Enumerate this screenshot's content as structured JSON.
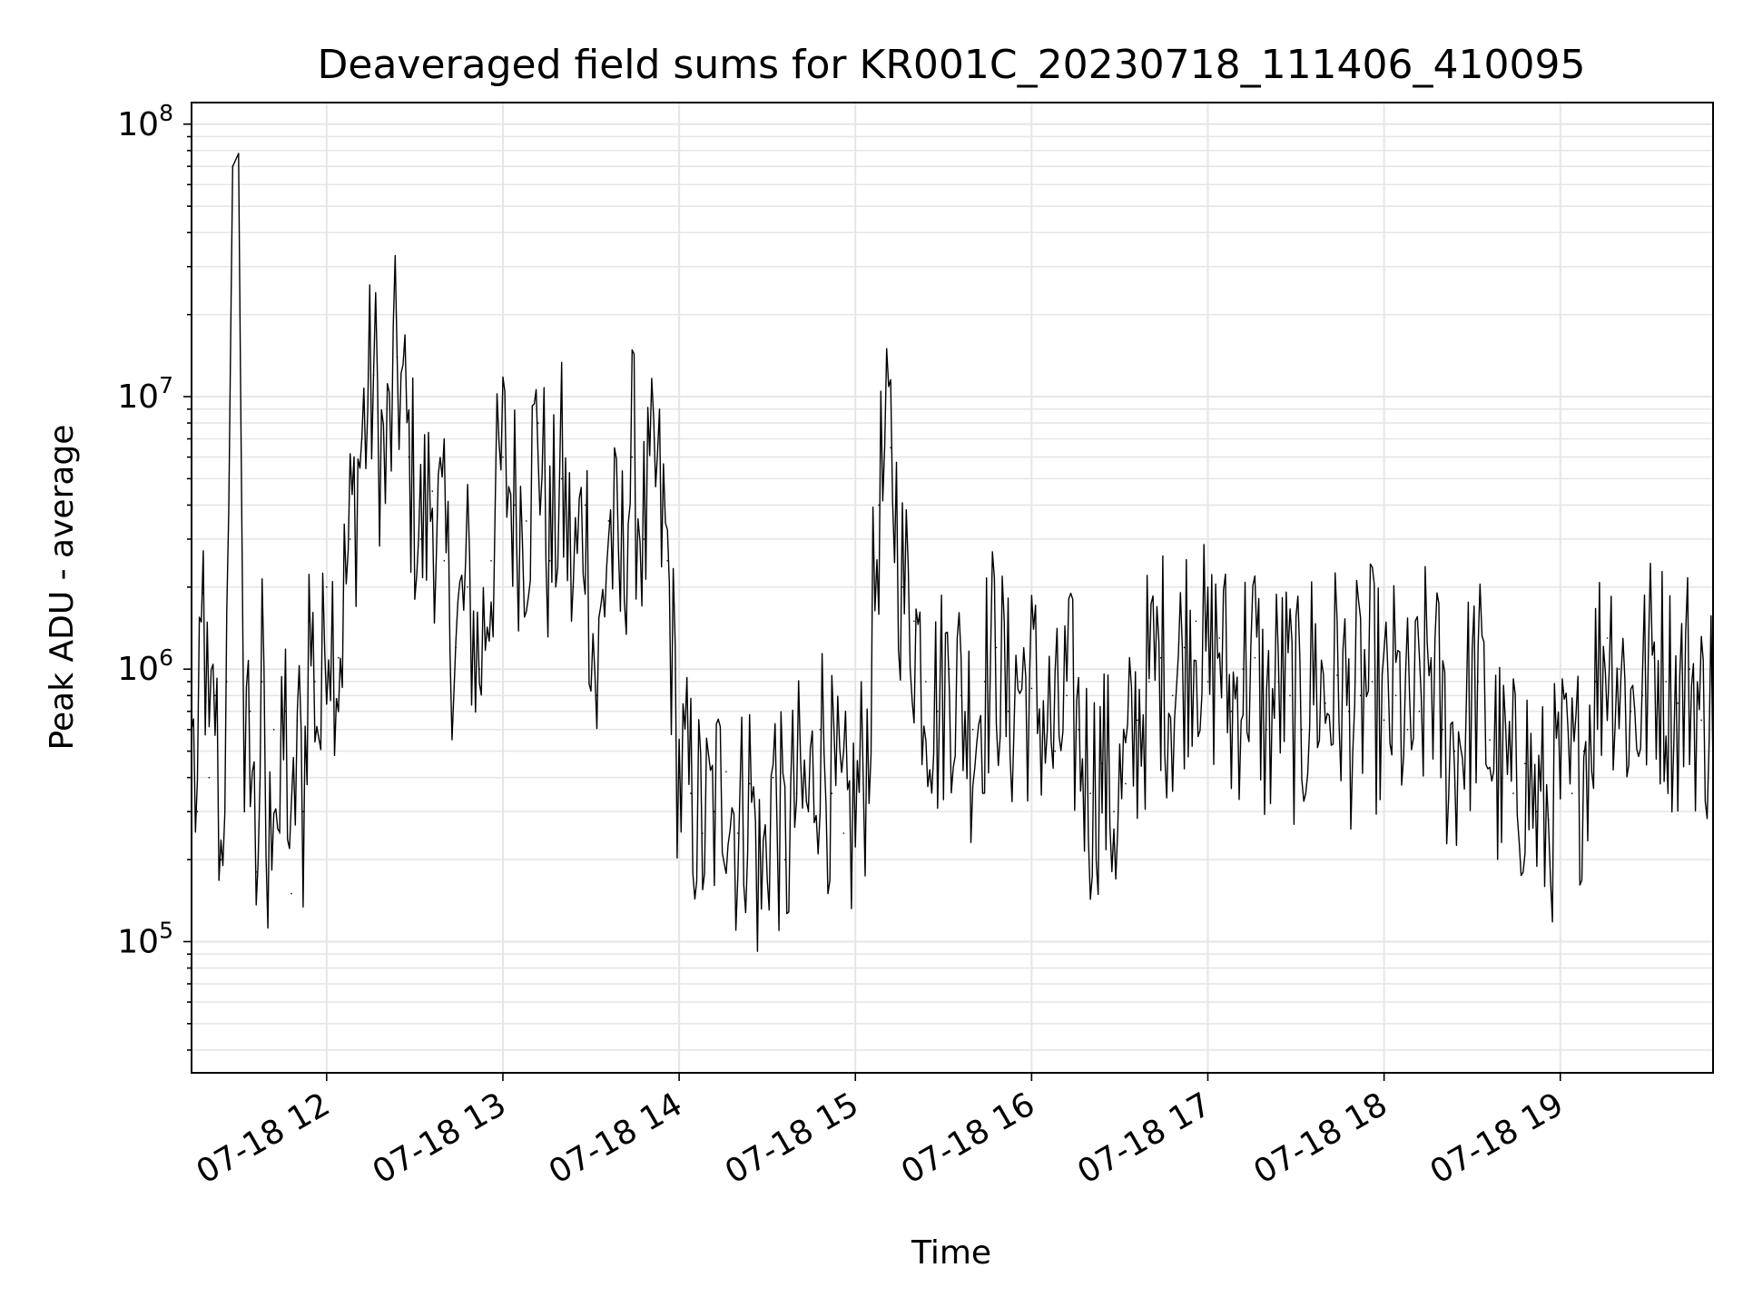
{
  "chart_data": {
    "type": "line",
    "title": "Deaveraged field sums for KR001C_20230718_111406_410095",
    "xlabel": "Time",
    "ylabel": "Peak ADU - average",
    "yscale": "log",
    "ylim": [
      33000,
      120000000
    ],
    "xlim": [
      "07-18 11:14",
      "07-18 19:52"
    ],
    "grid": "both (major and minor)",
    "line_color": "#000000",
    "grid_color": "#e6e6e6",
    "x_ticks": [
      "07-18 12",
      "07-18 13",
      "07-18 14",
      "07-18 15",
      "07-18 16",
      "07-18 17",
      "07-18 18",
      "07-18 19"
    ],
    "y_ticks": [
      {
        "value": 100000,
        "mantissa": "10",
        "exponent": "5"
      },
      {
        "value": 1000000,
        "mantissa": "10",
        "exponent": "6"
      },
      {
        "value": 10000000,
        "mantissa": "10",
        "exponent": "7"
      },
      {
        "value": 100000000,
        "mantissa": "10",
        "exponent": "8"
      }
    ],
    "series": [
      {
        "x_time_format": "MM-DD HH:MM",
        "x": [
          "07-18 11:14",
          "07-18 11:16",
          "07-18 11:18",
          "07-18 11:20",
          "07-18 11:22",
          "07-18 11:24",
          "07-18 11:26",
          "07-18 11:28",
          "07-18 11:30",
          "07-18 11:32",
          "07-18 11:34",
          "07-18 11:36",
          "07-18 11:38",
          "07-18 11:40",
          "07-18 11:42",
          "07-18 11:44",
          "07-18 11:46",
          "07-18 11:48",
          "07-18 11:50",
          "07-18 11:52",
          "07-18 11:54",
          "07-18 11:56",
          "07-18 11:58",
          "07-18 12:00",
          "07-18 12:04",
          "07-18 12:08",
          "07-18 12:12",
          "07-18 12:16",
          "07-18 12:20",
          "07-18 12:24",
          "07-18 12:28",
          "07-18 12:32",
          "07-18 12:36",
          "07-18 12:40",
          "07-18 12:44",
          "07-18 12:48",
          "07-18 12:52",
          "07-18 12:56",
          "07-18 13:00",
          "07-18 13:04",
          "07-18 13:08",
          "07-18 13:12",
          "07-18 13:16",
          "07-18 13:20",
          "07-18 13:24",
          "07-18 13:28",
          "07-18 13:32",
          "07-18 13:36",
          "07-18 13:40",
          "07-18 13:44",
          "07-18 13:48",
          "07-18 13:52",
          "07-18 13:56",
          "07-18 14:00",
          "07-18 14:04",
          "07-18 14:08",
          "07-18 14:12",
          "07-18 14:16",
          "07-18 14:20",
          "07-18 14:24",
          "07-18 14:28",
          "07-18 14:32",
          "07-18 14:36",
          "07-18 14:40",
          "07-18 14:44",
          "07-18 14:48",
          "07-18 14:52",
          "07-18 14:56",
          "07-18 15:00",
          "07-18 15:04",
          "07-18 15:08",
          "07-18 15:12",
          "07-18 15:16",
          "07-18 15:20",
          "07-18 15:24",
          "07-18 15:28",
          "07-18 15:32",
          "07-18 15:36",
          "07-18 15:40",
          "07-18 15:44",
          "07-18 15:48",
          "07-18 15:52",
          "07-18 15:56",
          "07-18 16:00",
          "07-18 16:04",
          "07-18 16:08",
          "07-18 16:12",
          "07-18 16:16",
          "07-18 16:20",
          "07-18 16:24",
          "07-18 16:28",
          "07-18 16:32",
          "07-18 16:36",
          "07-18 16:40",
          "07-18 16:44",
          "07-18 16:48",
          "07-18 16:52",
          "07-18 16:56",
          "07-18 17:00",
          "07-18 17:04",
          "07-18 17:08",
          "07-18 17:12",
          "07-18 17:16",
          "07-18 17:20",
          "07-18 17:24",
          "07-18 17:28",
          "07-18 17:32",
          "07-18 17:36",
          "07-18 17:40",
          "07-18 17:44",
          "07-18 17:48",
          "07-18 17:52",
          "07-18 17:56",
          "07-18 18:00",
          "07-18 18:04",
          "07-18 18:08",
          "07-18 18:12",
          "07-18 18:16",
          "07-18 18:20",
          "07-18 18:24",
          "07-18 18:28",
          "07-18 18:32",
          "07-18 18:36",
          "07-18 18:40",
          "07-18 18:44",
          "07-18 18:48",
          "07-18 18:52",
          "07-18 18:56",
          "07-18 19:00",
          "07-18 19:04",
          "07-18 19:08",
          "07-18 19:12",
          "07-18 19:16",
          "07-18 19:20",
          "07-18 19:24",
          "07-18 19:28",
          "07-18 19:32",
          "07-18 19:36",
          "07-18 19:40",
          "07-18 19:44",
          "07-18 19:48",
          "07-18 19:52"
        ],
        "y": [
          600000,
          300000,
          1900000,
          400000,
          800000,
          200000,
          900000,
          70000000,
          78000000,
          300000,
          700000,
          180000,
          900000,
          130000,
          600000,
          250000,
          700000,
          150000,
          650000,
          300000,
          1500000,
          900000,
          600000,
          2000000,
          1100000,
          3000000,
          7000000,
          12000000,
          5000000,
          14000000,
          6000000,
          3000000,
          4500000,
          2500000,
          1200000,
          2000000,
          1000000,
          2500000,
          6000000,
          4000000,
          3500000,
          8000000,
          2500000,
          5000000,
          2000000,
          4000000,
          800000,
          3500000,
          2000000,
          6000000,
          3000000,
          5000000,
          2500000,
          400000,
          350000,
          250000,
          300000,
          420000,
          250000,
          380000,
          150000,
          400000,
          200000,
          350000,
          300000,
          600000,
          350000,
          250000,
          300000,
          500000,
          4000000,
          6500000,
          2000000,
          1500000,
          900000,
          700000,
          1000000,
          800000,
          600000,
          900000,
          1200000,
          700000,
          900000,
          850000,
          700000,
          500000,
          800000,
          600000,
          350000,
          450000,
          300000,
          380000,
          650000,
          900000,
          1100000,
          800000,
          1200000,
          1500000,
          900000,
          1300000,
          700000,
          1000000,
          1100000,
          600000,
          900000,
          800000,
          600000,
          1000000,
          750000,
          950000,
          700000,
          800000,
          900000,
          650000,
          800000,
          600000,
          700000,
          1100000,
          600000,
          500000,
          700000,
          900000,
          550000,
          400000,
          350000,
          450000,
          300000,
          280000,
          400000,
          350000,
          500000,
          900000,
          1300000,
          1000000,
          700000,
          800000,
          1100000,
          900000,
          750000,
          1000000,
          650000,
          800000
        ]
      }
    ]
  }
}
